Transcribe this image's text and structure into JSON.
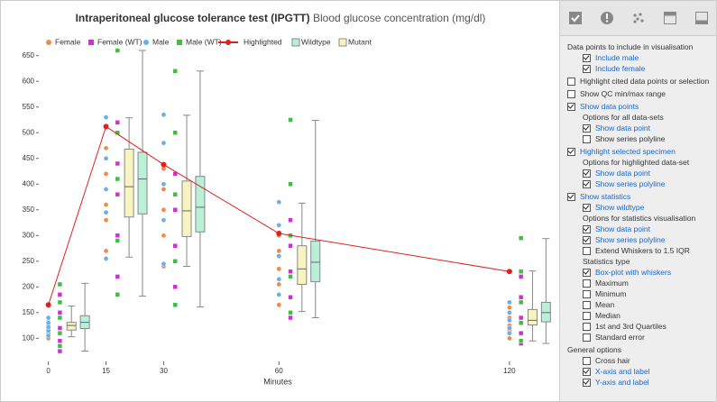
{
  "chart_data": {
    "type": "scatter",
    "title": "Intraperitoneal glucose tolerance test (IPGTT)",
    "subtitle": "Blood glucose concentration (mg/dl)",
    "x_label": "Minutes",
    "xlim": [
      -2.5,
      132
    ],
    "ylim": [
      55,
      660
    ],
    "xticks": [
      0,
      15,
      30,
      60,
      120
    ],
    "yticks": [
      100,
      150,
      200,
      250,
      300,
      350,
      400,
      450,
      500,
      550,
      600,
      650
    ],
    "series": [
      {
        "name": "Female",
        "kind": "dots",
        "marker": "circle",
        "color": "#f08a4b",
        "x": [
          0,
          0,
          0,
          0,
          0,
          15,
          15,
          15,
          15,
          15,
          30,
          30,
          30,
          30,
          30,
          60,
          60,
          60,
          60,
          60,
          120,
          120,
          120,
          120,
          120
        ],
        "values": [
          100,
          110,
          118,
          125,
          132,
          270,
          330,
          360,
          420,
          470,
          240,
          300,
          350,
          390,
          430,
          165,
          205,
          235,
          270,
          300,
          100,
          115,
          125,
          140,
          160
        ]
      },
      {
        "name": "Female (WT)",
        "kind": "dots",
        "marker": "square",
        "color": "#cc33cc",
        "x": [
          3,
          3,
          3,
          3,
          3,
          18,
          18,
          18,
          18,
          18,
          33,
          33,
          33,
          33,
          33,
          63,
          63,
          63,
          63,
          63,
          123,
          123,
          123,
          123,
          123
        ],
        "values": [
          75,
          95,
          120,
          150,
          185,
          220,
          300,
          380,
          440,
          520,
          200,
          280,
          350,
          420,
          500,
          140,
          180,
          230,
          280,
          330,
          90,
          110,
          140,
          180,
          220
        ]
      },
      {
        "name": "Male",
        "kind": "dots",
        "marker": "circle",
        "color": "#6aaeea",
        "x": [
          0,
          0,
          0,
          0,
          0,
          15,
          15,
          15,
          15,
          15,
          30,
          30,
          30,
          30,
          30,
          60,
          60,
          60,
          60,
          60,
          120,
          120,
          120,
          120,
          120
        ],
        "values": [
          105,
          115,
          122,
          130,
          140,
          255,
          345,
          390,
          450,
          530,
          245,
          330,
          400,
          480,
          535,
          185,
          215,
          260,
          320,
          365,
          110,
          120,
          135,
          150,
          170
        ]
      },
      {
        "name": "Male (WT)",
        "kind": "dots",
        "marker": "square",
        "color": "#44bb44",
        "x": [
          3,
          3,
          3,
          3,
          3,
          18,
          18,
          18,
          18,
          18,
          33,
          33,
          33,
          33,
          33,
          63,
          63,
          63,
          63,
          63,
          123,
          123,
          123,
          123,
          123
        ],
        "values": [
          85,
          110,
          140,
          170,
          205,
          185,
          290,
          410,
          500,
          660,
          165,
          250,
          380,
          500,
          620,
          150,
          220,
          300,
          400,
          525,
          95,
          130,
          170,
          230,
          295
        ]
      },
      {
        "name": "Highlighted",
        "kind": "line",
        "color": "#e02020",
        "x": [
          0,
          15,
          30,
          60,
          120
        ],
        "values": [
          165,
          512,
          438,
          304,
          230
        ]
      },
      {
        "name": "Wildtype",
        "kind": "box",
        "color": "#b8f0d8",
        "x": [
          9.5,
          24.5,
          39.5,
          69.5,
          129.5
        ],
        "min": [
          75,
          182,
          161,
          140,
          90
        ],
        "q1": [
          119,
          342,
          307,
          210,
          132
        ],
        "median": [
          131,
          410,
          355,
          248,
          150
        ],
        "q3": [
          144,
          462,
          415,
          289,
          170
        ],
        "max": [
          207,
          660,
          620,
          524,
          294
        ]
      },
      {
        "name": "Mutant",
        "kind": "box",
        "color": "#f8f4c0",
        "x": [
          6,
          21,
          36,
          66,
          126
        ],
        "min": [
          103,
          258,
          240,
          152,
          95
        ],
        "q1": [
          116,
          336,
          298,
          205,
          126
        ],
        "median": [
          125,
          395,
          348,
          235,
          135
        ],
        "q3": [
          131,
          468,
          406,
          280,
          156
        ],
        "max": [
          163,
          529,
          534,
          363,
          231
        ]
      }
    ]
  },
  "panel": {
    "items": [
      {
        "kind": "heading",
        "indent": 0,
        "text": "Data points to include in visualisation"
      },
      {
        "kind": "checkbox",
        "indent": 1,
        "checked": true,
        "text": "Include male"
      },
      {
        "kind": "checkbox",
        "indent": 1,
        "checked": true,
        "text": "Include female"
      },
      {
        "kind": "checkbox",
        "indent": 0,
        "checked": false,
        "text": "Highlight cited data points or selection"
      },
      {
        "kind": "checkbox",
        "indent": 0,
        "checked": false,
        "text": "Show QC min/max range"
      },
      {
        "kind": "checkbox",
        "indent": 0,
        "checked": true,
        "text": "Show data points"
      },
      {
        "kind": "heading",
        "indent": 1,
        "text": "Options for all data-sets"
      },
      {
        "kind": "checkbox",
        "indent": 1,
        "checked": true,
        "text": "Show data point"
      },
      {
        "kind": "checkbox",
        "indent": 1,
        "checked": false,
        "text": "Show series polyline"
      },
      {
        "kind": "checkbox",
        "indent": 0,
        "checked": true,
        "text": "Highlight selected specimen"
      },
      {
        "kind": "heading",
        "indent": 1,
        "text": "Options for highlighted data-set"
      },
      {
        "kind": "checkbox",
        "indent": 1,
        "checked": true,
        "text": "Show data point"
      },
      {
        "kind": "checkbox",
        "indent": 1,
        "checked": true,
        "text": "Show series polyline"
      },
      {
        "kind": "checkbox",
        "indent": 0,
        "checked": true,
        "text": "Show statistics"
      },
      {
        "kind": "checkbox",
        "indent": 1,
        "checked": true,
        "text": "Show wildtype"
      },
      {
        "kind": "heading",
        "indent": 1,
        "text": "Options for statistics visualisation"
      },
      {
        "kind": "checkbox",
        "indent": 1,
        "checked": true,
        "text": "Show data point"
      },
      {
        "kind": "checkbox",
        "indent": 1,
        "checked": true,
        "text": "Show series polyline"
      },
      {
        "kind": "checkbox",
        "indent": 1,
        "checked": false,
        "text": "Extend Whiskers to 1.5 IQR"
      },
      {
        "kind": "heading",
        "indent": 1,
        "text": "Statistics type"
      },
      {
        "kind": "checkbox",
        "indent": 1,
        "checked": true,
        "text": "Box-plot with whiskers"
      },
      {
        "kind": "checkbox",
        "indent": 1,
        "checked": false,
        "text": "Maximum"
      },
      {
        "kind": "checkbox",
        "indent": 1,
        "checked": false,
        "text": "Minimum"
      },
      {
        "kind": "checkbox",
        "indent": 1,
        "checked": false,
        "text": "Mean"
      },
      {
        "kind": "checkbox",
        "indent": 1,
        "checked": false,
        "text": "Median"
      },
      {
        "kind": "checkbox",
        "indent": 1,
        "checked": false,
        "text": "1st and 3rd Quartiles"
      },
      {
        "kind": "checkbox",
        "indent": 1,
        "checked": false,
        "text": "Standard error"
      },
      {
        "kind": "heading",
        "indent": 0,
        "text": "General options"
      },
      {
        "kind": "checkbox",
        "indent": 1,
        "checked": false,
        "text": "Cross hair"
      },
      {
        "kind": "checkbox",
        "indent": 1,
        "checked": true,
        "text": "X-axis and label"
      },
      {
        "kind": "checkbox",
        "indent": 1,
        "checked": true,
        "text": "Y-axis and label"
      }
    ]
  }
}
